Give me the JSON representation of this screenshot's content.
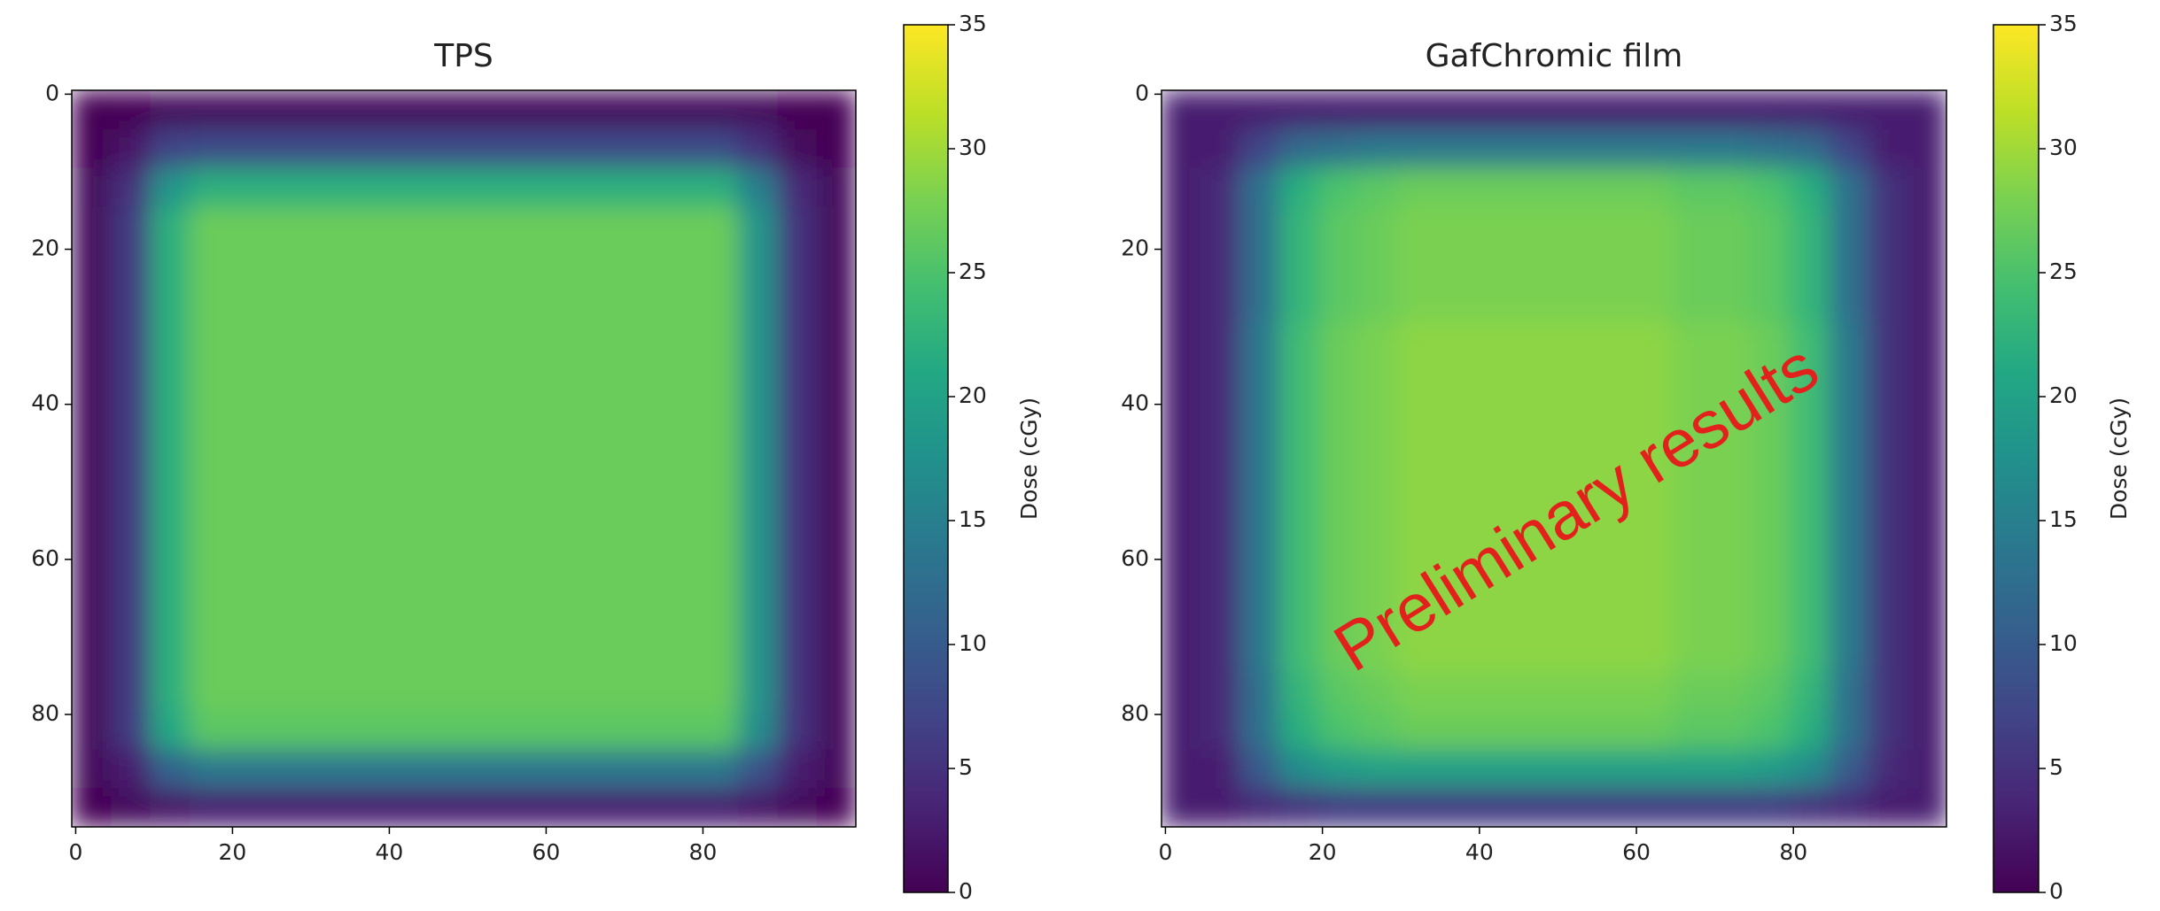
{
  "chart_data": [
    {
      "type": "heatmap",
      "title": "TPS",
      "colormap": "viridis",
      "xlim": [
        -0.5,
        99.5
      ],
      "ylim": [
        94.5,
        -0.5
      ],
      "xticks": [
        0,
        20,
        40,
        60,
        80
      ],
      "yticks": [
        0,
        20,
        40,
        60,
        80
      ],
      "colorbar": {
        "label": "Dose (cGy)",
        "lim": [
          0,
          35
        ],
        "ticks": [
          0,
          5,
          10,
          15,
          20,
          25,
          30,
          35
        ]
      },
      "values": [
        [
          0,
          0,
          1,
          1,
          1,
          1,
          1,
          1,
          1,
          1,
          1,
          1,
          1,
          1,
          1,
          1,
          1,
          1,
          0,
          0
        ],
        [
          0,
          2,
          7,
          8,
          8,
          8,
          8,
          8,
          8,
          8,
          8,
          8,
          8,
          8,
          8,
          8,
          8,
          5,
          1,
          0
        ],
        [
          1,
          5,
          18,
          22,
          22,
          22,
          22,
          22,
          22,
          22,
          22,
          22,
          22,
          22,
          22,
          22,
          22,
          15,
          4,
          1
        ],
        [
          1,
          6,
          22,
          27,
          27,
          27,
          27,
          27,
          27,
          27,
          27,
          27,
          27,
          27,
          27,
          27,
          27,
          18,
          5,
          1
        ],
        [
          1,
          6,
          22,
          27,
          27,
          27,
          27,
          27,
          27,
          27,
          27,
          27,
          27,
          27,
          27,
          27,
          27,
          18,
          5,
          1
        ],
        [
          1,
          6,
          22,
          27,
          27,
          27,
          27,
          27,
          27,
          27,
          27,
          27,
          27,
          27,
          27,
          27,
          27,
          18,
          5,
          1
        ],
        [
          1,
          6,
          22,
          27,
          27,
          27,
          27,
          27,
          27,
          27,
          27,
          27,
          27,
          27,
          27,
          27,
          27,
          18,
          5,
          1
        ],
        [
          1,
          6,
          22,
          27,
          27,
          27,
          27,
          27,
          27,
          27,
          27,
          27,
          27,
          27,
          27,
          27,
          27,
          18,
          5,
          1
        ],
        [
          1,
          6,
          22,
          27,
          27,
          27,
          27,
          27,
          27,
          27,
          27,
          27,
          27,
          27,
          27,
          27,
          27,
          18,
          5,
          1
        ],
        [
          1,
          6,
          22,
          27,
          27,
          27,
          27,
          27,
          27,
          27,
          27,
          27,
          27,
          27,
          27,
          27,
          27,
          18,
          5,
          1
        ],
        [
          1,
          6,
          22,
          27,
          27,
          27,
          27,
          27,
          27,
          27,
          27,
          27,
          27,
          27,
          27,
          27,
          27,
          18,
          5,
          1
        ],
        [
          1,
          6,
          22,
          27,
          27,
          27,
          27,
          27,
          27,
          27,
          27,
          27,
          27,
          27,
          27,
          27,
          27,
          18,
          5,
          1
        ],
        [
          1,
          6,
          22,
          27,
          27,
          27,
          27,
          27,
          27,
          27,
          27,
          27,
          27,
          27,
          27,
          27,
          27,
          18,
          5,
          1
        ],
        [
          1,
          6,
          22,
          27,
          27,
          27,
          27,
          27,
          27,
          27,
          27,
          27,
          27,
          27,
          27,
          27,
          27,
          18,
          5,
          1
        ],
        [
          1,
          6,
          22,
          27,
          27,
          27,
          27,
          27,
          27,
          27,
          27,
          27,
          27,
          27,
          27,
          27,
          27,
          18,
          5,
          1
        ],
        [
          1,
          6,
          22,
          27,
          27,
          27,
          27,
          27,
          27,
          27,
          27,
          27,
          27,
          27,
          27,
          27,
          27,
          18,
          5,
          1
        ],
        [
          1,
          6,
          21,
          26,
          26,
          26,
          26,
          26,
          26,
          26,
          26,
          26,
          26,
          26,
          26,
          26,
          26,
          17,
          5,
          1
        ],
        [
          1,
          3,
          11,
          14,
          14,
          14,
          14,
          14,
          14,
          14,
          14,
          14,
          14,
          14,
          14,
          14,
          14,
          9,
          3,
          1
        ],
        [
          0,
          1,
          2,
          3,
          3,
          3,
          3,
          3,
          3,
          3,
          3,
          3,
          3,
          3,
          3,
          3,
          3,
          2,
          1,
          0
        ]
      ]
    },
    {
      "type": "heatmap",
      "title": "GafChromic film",
      "colormap": "viridis",
      "xlim": [
        -0.5,
        99.5
      ],
      "ylim": [
        94.5,
        -0.5
      ],
      "xticks": [
        0,
        20,
        40,
        60,
        80
      ],
      "yticks": [
        0,
        20,
        40,
        60,
        80
      ],
      "colorbar": {
        "label": "Dose (cGy)",
        "lim": [
          0,
          35
        ],
        "ticks": [
          0,
          5,
          10,
          15,
          20,
          25,
          30,
          35
        ]
      },
      "annotation": {
        "text": "Preliminary results",
        "color": "#e3211c"
      },
      "values": [
        [
          3,
          3,
          3,
          3,
          3,
          3,
          3,
          3,
          3,
          3,
          3,
          3,
          3,
          3,
          3,
          3,
          3,
          3,
          3,
          3
        ],
        [
          3,
          3,
          7,
          12,
          13,
          14,
          14,
          14,
          14,
          14,
          14,
          14,
          14,
          14,
          14,
          13,
          12,
          7,
          3,
          3
        ],
        [
          3,
          4,
          13,
          22,
          25,
          26,
          27,
          27,
          27,
          27,
          27,
          27,
          27,
          26,
          26,
          25,
          22,
          13,
          5,
          3
        ],
        [
          3,
          4,
          13,
          23,
          26,
          27,
          28,
          28,
          28,
          28,
          28,
          28,
          28,
          27,
          27,
          26,
          23,
          13,
          5,
          3
        ],
        [
          3,
          4,
          13,
          23,
          26,
          27,
          28,
          28,
          28,
          28,
          28,
          28,
          28,
          27,
          27,
          26,
          23,
          13,
          5,
          3
        ],
        [
          3,
          4,
          13,
          23,
          26,
          27,
          28,
          28,
          28,
          28,
          28,
          28,
          28,
          27,
          27,
          26,
          23,
          13,
          5,
          3
        ],
        [
          3,
          4,
          14,
          24,
          27,
          28,
          29,
          29,
          29,
          29,
          29,
          29,
          29,
          28,
          28,
          27,
          24,
          14,
          5,
          3
        ],
        [
          3,
          4,
          14,
          24,
          27,
          28,
          29,
          29,
          29,
          29,
          29,
          29,
          29,
          28,
          28,
          27,
          24,
          14,
          5,
          3
        ],
        [
          3,
          4,
          14,
          24,
          27,
          28,
          29,
          29,
          29,
          29,
          29,
          29,
          29,
          28,
          28,
          27,
          24,
          14,
          5,
          3
        ],
        [
          3,
          4,
          14,
          24,
          27,
          28,
          29,
          29,
          29,
          29,
          29,
          29,
          29,
          28,
          28,
          27,
          24,
          14,
          5,
          3
        ],
        [
          3,
          4,
          14,
          24,
          27,
          28,
          29,
          29,
          29,
          29,
          29,
          29,
          29,
          28,
          28,
          27,
          24,
          14,
          5,
          3
        ],
        [
          3,
          4,
          14,
          24,
          27,
          28,
          29,
          29,
          29,
          29,
          29,
          29,
          29,
          28,
          28,
          27,
          24,
          14,
          5,
          3
        ],
        [
          3,
          4,
          14,
          24,
          27,
          28,
          29,
          29,
          29,
          29,
          29,
          29,
          29,
          28,
          28,
          27,
          24,
          14,
          5,
          3
        ],
        [
          3,
          4,
          14,
          24,
          27,
          28,
          29,
          29,
          29,
          29,
          29,
          29,
          29,
          28,
          28,
          27,
          24,
          14,
          5,
          3
        ],
        [
          3,
          4,
          14,
          24,
          27,
          28,
          29,
          29,
          29,
          29,
          29,
          29,
          29,
          28,
          28,
          27,
          24,
          14,
          5,
          3
        ],
        [
          3,
          4,
          13,
          23,
          26,
          27,
          28,
          28,
          28,
          28,
          28,
          28,
          28,
          27,
          27,
          26,
          23,
          13,
          5,
          3
        ],
        [
          3,
          4,
          13,
          22,
          25,
          26,
          27,
          27,
          27,
          27,
          27,
          27,
          27,
          26,
          26,
          25,
          22,
          13,
          5,
          3
        ],
        [
          3,
          3,
          10,
          17,
          19,
          20,
          20,
          20,
          20,
          20,
          20,
          20,
          20,
          20,
          20,
          19,
          17,
          10,
          4,
          3
        ],
        [
          3,
          3,
          4,
          5,
          6,
          6,
          6,
          6,
          6,
          6,
          6,
          6,
          6,
          6,
          6,
          6,
          5,
          4,
          3,
          3
        ]
      ]
    }
  ]
}
